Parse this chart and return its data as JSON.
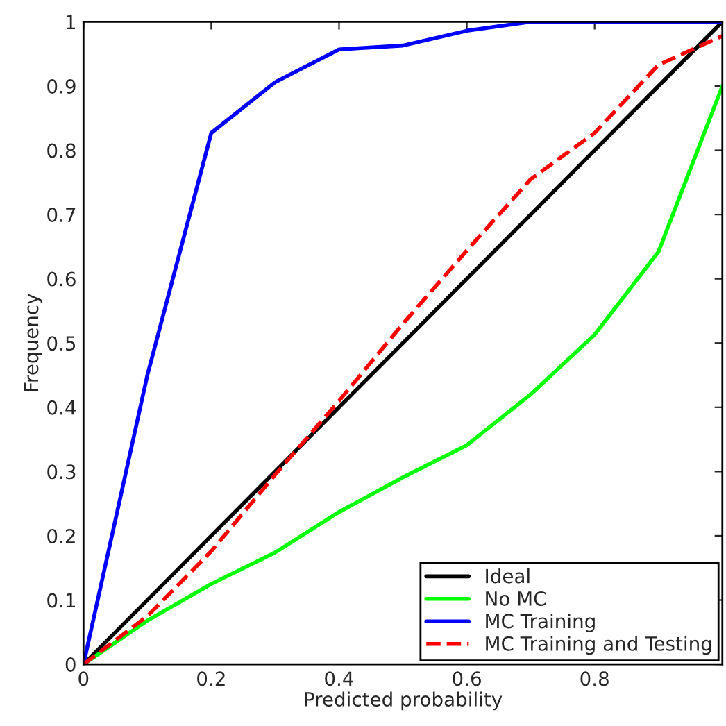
{
  "chart_data": {
    "type": "line",
    "xlabel": "Predicted probability",
    "ylabel": "Frequency",
    "xlim": [
      0,
      1
    ],
    "ylim": [
      0,
      1
    ],
    "xticks": [
      0,
      0.2,
      0.4,
      0.6,
      0.8,
      {
        "value": 1,
        "label": null
      }
    ],
    "yticks": [
      0,
      0.1,
      0.2,
      0.3,
      0.4,
      0.5,
      0.6,
      0.7,
      0.8,
      0.9,
      1
    ],
    "grid": false,
    "legend": "bottom right",
    "marker": "none",
    "series": [
      {
        "name": "Ideal",
        "color": "#000000",
        "x": [
          0,
          1
        ],
        "values": [
          0,
          1
        ],
        "line_style": "solid"
      },
      {
        "name": "No MC",
        "color": "#00ff00",
        "x": [
          0,
          0.1,
          0.2,
          0.3,
          0.4,
          0.5,
          0.6,
          0.7,
          0.8,
          0.9,
          1
        ],
        "values": [
          0,
          0.068,
          0.125,
          0.174,
          0.237,
          0.291,
          0.341,
          0.42,
          0.513,
          0.642,
          0.9
        ],
        "line_style": "solid"
      },
      {
        "name": "MC Training",
        "color": "#0000ff",
        "x": [
          0,
          0.1,
          0.2,
          0.3,
          0.4,
          0.5,
          0.6,
          0.7,
          0.8,
          0.9,
          1
        ],
        "values": [
          0,
          0.45,
          0.827,
          0.906,
          0.957,
          0.963,
          0.986,
          1,
          1,
          1,
          1
        ],
        "line_style": "solid"
      },
      {
        "name": "MC Training and Testing",
        "color": "#ff0000",
        "x": [
          0,
          0.1,
          0.2,
          0.3,
          0.4,
          0.5,
          0.6,
          0.7,
          0.8,
          0.9,
          1
        ],
        "values": [
          0,
          0.075,
          0.176,
          0.295,
          0.41,
          0.53,
          0.644,
          0.755,
          0.827,
          0.933,
          0.978
        ],
        "line_style": "dashed"
      }
    ]
  }
}
